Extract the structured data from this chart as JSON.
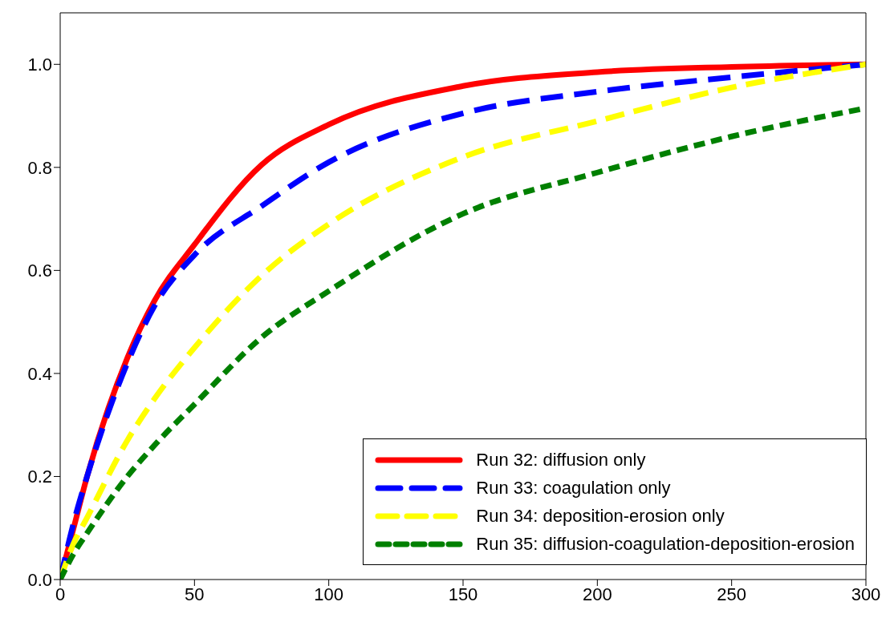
{
  "chart_data": {
    "type": "line",
    "x": [
      0,
      5,
      10,
      25,
      35,
      50,
      75,
      100,
      150,
      200,
      250,
      300
    ],
    "series": [
      {
        "name": "Run 32: diffusion only",
        "color": "#ff0000",
        "line_style": "solid",
        "values": [
          0,
          0.1,
          0.2,
          0.43,
          0.54,
          0.65,
          0.805,
          0.883,
          0.958,
          0.985,
          0.995,
          1.0
        ]
      },
      {
        "name": "Run 33: coagulation only",
        "color": "#0000ff",
        "line_style": "dashed",
        "values": [
          0,
          0.11,
          0.2,
          0.42,
          0.53,
          0.63,
          0.725,
          0.81,
          0.905,
          0.947,
          0.975,
          1.0
        ]
      },
      {
        "name": "Run 34: deposition-erosion only",
        "color": "#ffff00",
        "line_style": "dashed",
        "values": [
          0,
          0.07,
          0.12,
          0.27,
          0.35,
          0.45,
          0.59,
          0.69,
          0.82,
          0.89,
          0.955,
          1.0
        ]
      },
      {
        "name": "Run 35: diffusion-coagulation-deposition-erosion",
        "color": "#008000",
        "line_style": "dashed",
        "values": [
          0,
          0.05,
          0.09,
          0.2,
          0.26,
          0.34,
          0.47,
          0.56,
          0.71,
          0.79,
          0.86,
          0.915
        ]
      }
    ],
    "xlim": [
      0,
      300
    ],
    "xticks": [
      0,
      50,
      100,
      150,
      200,
      250,
      300
    ],
    "ylim": [
      0,
      1.1
    ],
    "yticks": [
      {
        "value": 0,
        "label": "0.0"
      },
      {
        "value": 0.2,
        "label": "0.2"
      },
      {
        "value": 0.4,
        "label": "0.4"
      },
      {
        "value": 0.6,
        "label": "0.6"
      },
      {
        "value": 0.8,
        "label": "0.8"
      },
      {
        "value": 1.0,
        "label": "1.0"
      }
    ],
    "grid": false,
    "legend": "bottom right",
    "marker": "none"
  }
}
